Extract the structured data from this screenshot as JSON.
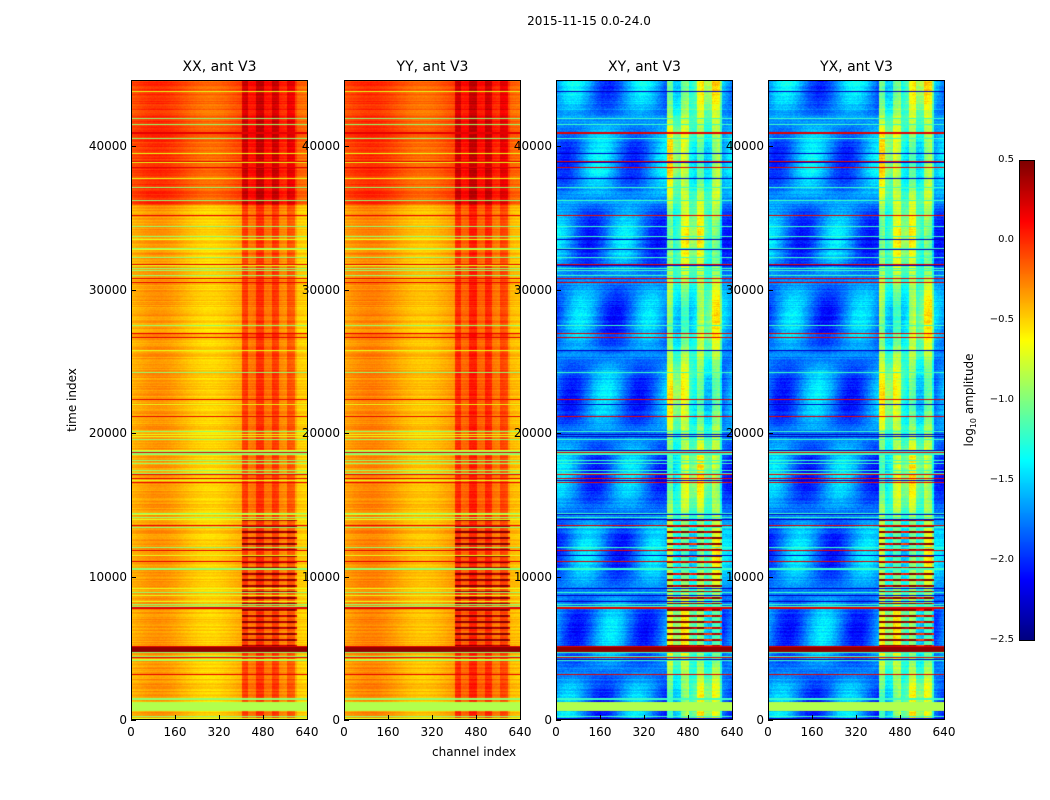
{
  "figure_title": "2015-11-15 0.0-24.0",
  "chart_data": {
    "type": "heatmap",
    "title": "2015-11-15 0.0-24.0",
    "xlabel": "channel index",
    "ylabel": "time index",
    "xlim": [
      0,
      640
    ],
    "ylim": [
      0,
      44600
    ],
    "xticks": [
      0,
      160,
      320,
      480,
      640
    ],
    "yticks": [
      0,
      10000,
      20000,
      30000,
      40000
    ],
    "xtick_labels": [
      "0",
      "160",
      "320",
      "480",
      "640"
    ],
    "ytick_labels": [
      "0",
      "10000",
      "20000",
      "30000",
      "40000"
    ],
    "colormap": "jet",
    "panels": [
      {
        "title": "XX, ant V3",
        "base_log_amplitude": -0.4,
        "upper_block_log_amplitude": -0.1,
        "upper_block_start": 36000,
        "rfi_channels": [
          400,
          600
        ]
      },
      {
        "title": "YY, ant V3",
        "base_log_amplitude": -0.35,
        "upper_block_log_amplitude": -0.1,
        "upper_block_start": 36000,
        "rfi_channels": [
          400,
          600
        ]
      },
      {
        "title": "XY, ant V3",
        "base_log_amplitude": -1.75,
        "upper_block_log_amplitude": -1.7,
        "upper_block_start": 36000,
        "rfi_channels": [
          400,
          600
        ]
      },
      {
        "title": "YX, ant V3",
        "base_log_amplitude": -1.75,
        "upper_block_log_amplitude": -1.7,
        "upper_block_start": 36000,
        "rfi_channels": [
          400,
          600
        ]
      }
    ],
    "colorbar": {
      "label": "log10 amplitude",
      "label_main": "log",
      "label_sub": "10",
      "label_rest": " amplitude",
      "clim": [
        -2.5,
        0.5
      ],
      "ticks": [
        0.5,
        0.0,
        -0.5,
        -1.0,
        -1.5,
        -2.0,
        -2.5
      ],
      "tick_labels": [
        "0.5",
        "0.0",
        "−0.5",
        "−1.0",
        "−1.5",
        "−2.0",
        "−2.5"
      ]
    }
  }
}
